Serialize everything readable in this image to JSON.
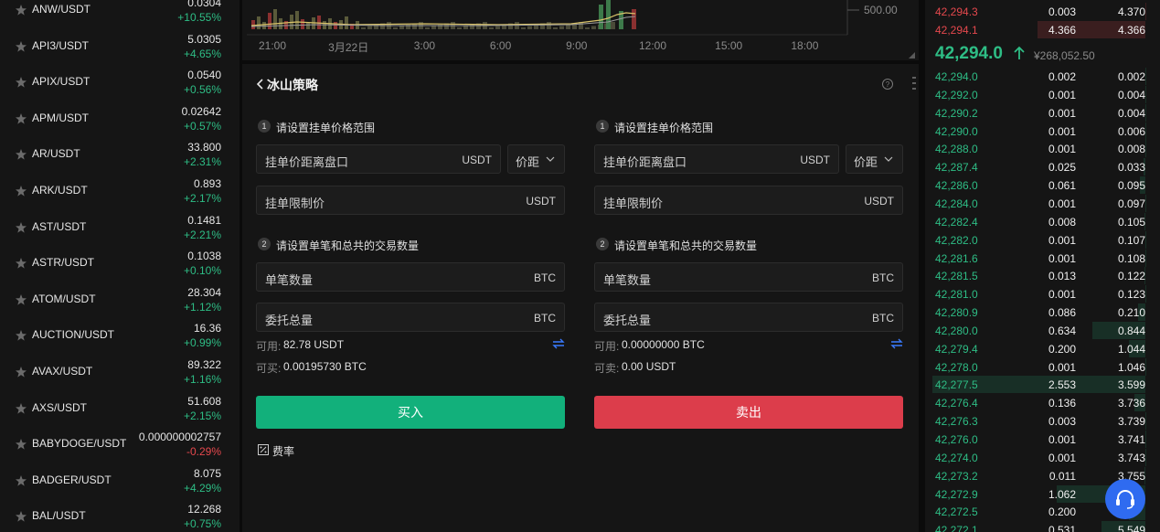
{
  "market_list": [
    {
      "symbol": "ANW/USDT",
      "price": "0.0304",
      "change": "+10.55%"
    },
    {
      "symbol": "API3/USDT",
      "price": "5.0305",
      "change": "+4.65%"
    },
    {
      "symbol": "APIX/USDT",
      "price": "0.0540",
      "change": "+0.56%"
    },
    {
      "symbol": "APM/USDT",
      "price": "0.02642",
      "change": "+0.57%"
    },
    {
      "symbol": "AR/USDT",
      "price": "33.800",
      "change": "+2.31%"
    },
    {
      "symbol": "ARK/USDT",
      "price": "0.893",
      "change": "+2.17%"
    },
    {
      "symbol": "AST/USDT",
      "price": "0.1481",
      "change": "+2.21%"
    },
    {
      "symbol": "ASTR/USDT",
      "price": "0.1038",
      "change": "+0.10%"
    },
    {
      "symbol": "ATOM/USDT",
      "price": "28.304",
      "change": "+1.12%"
    },
    {
      "symbol": "AUCTION/USDT",
      "price": "16.36",
      "change": "+0.99%"
    },
    {
      "symbol": "AVAX/USDT",
      "price": "89.322",
      "change": "+1.16%"
    },
    {
      "symbol": "AXS/USDT",
      "price": "51.608",
      "change": "+2.15%"
    },
    {
      "symbol": "BABYDOGE/USDT",
      "price": "0.000000002757",
      "change": "-0.29%"
    },
    {
      "symbol": "BADGER/USDT",
      "price": "8.075",
      "change": "+4.29%"
    },
    {
      "symbol": "BAL/USDT",
      "price": "12.268",
      "change": "+0.75%"
    }
  ],
  "chart": {
    "price_label": "500.00",
    "time_labels": [
      "21:00",
      "3月22日",
      "3:00",
      "6:00",
      "9:00",
      "12:00",
      "15:00",
      "18:00"
    ]
  },
  "strategy": {
    "title": "冰山策略",
    "buy": {
      "step1_no": "1",
      "step1": "请设置挂单价格范围",
      "distance_label": "挂单价距离盘口",
      "distance_unit": "USDT",
      "mode": "价距",
      "limit_label": "挂单限制价",
      "limit_unit": "USDT",
      "step2_no": "2",
      "step2": "请设置单笔和总共的交易数量",
      "qty_label": "单笔数量",
      "qty_unit": "BTC",
      "total_label": "委托总量",
      "total_unit": "BTC",
      "available_label": "可用:",
      "available": "82.78 USDT",
      "max_label": "可买:",
      "max": "0.00195730 BTC",
      "button": "买入"
    },
    "sell": {
      "step1_no": "1",
      "step1": "请设置挂单价格范围",
      "distance_label": "挂单价距离盘口",
      "distance_unit": "USDT",
      "mode": "价距",
      "limit_label": "挂单限制价",
      "limit_unit": "USDT",
      "step2_no": "2",
      "step2": "请设置单笔和总共的交易数量",
      "qty_label": "单笔数量",
      "qty_unit": "BTC",
      "total_label": "委托总量",
      "total_unit": "BTC",
      "available_label": "可用:",
      "available": "0.00000000 BTC",
      "max_label": "可卖:",
      "max": "0.00 USDT",
      "button": "卖出"
    },
    "fee": "费率"
  },
  "order_book": {
    "asks": [
      {
        "price": "42,294.3",
        "amount": "0.003",
        "total": "4.370"
      },
      {
        "price": "42,294.1",
        "amount": "4.366",
        "total": "4.366"
      }
    ],
    "last_price": "42,294.0",
    "last_price_cny": "¥268,052.50",
    "bids": [
      {
        "price": "42,294.0",
        "amount": "0.002",
        "total": "0.002"
      },
      {
        "price": "42,292.0",
        "amount": "0.001",
        "total": "0.004"
      },
      {
        "price": "42,290.2",
        "amount": "0.001",
        "total": "0.004"
      },
      {
        "price": "42,290.0",
        "amount": "0.001",
        "total": "0.006"
      },
      {
        "price": "42,288.0",
        "amount": "0.001",
        "total": "0.008"
      },
      {
        "price": "42,287.4",
        "amount": "0.025",
        "total": "0.033"
      },
      {
        "price": "42,286.0",
        "amount": "0.061",
        "total": "0.095"
      },
      {
        "price": "42,284.0",
        "amount": "0.001",
        "total": "0.097"
      },
      {
        "price": "42,282.4",
        "amount": "0.008",
        "total": "0.105"
      },
      {
        "price": "42,282.0",
        "amount": "0.001",
        "total": "0.107"
      },
      {
        "price": "42,281.6",
        "amount": "0.001",
        "total": "0.108"
      },
      {
        "price": "42,281.5",
        "amount": "0.013",
        "total": "0.122"
      },
      {
        "price": "42,281.0",
        "amount": "0.001",
        "total": "0.123"
      },
      {
        "price": "42,280.9",
        "amount": "0.086",
        "total": "0.210"
      },
      {
        "price": "42,280.0",
        "amount": "0.634",
        "total": "0.844"
      },
      {
        "price": "42,279.4",
        "amount": "0.200",
        "total": "1.044"
      },
      {
        "price": "42,278.0",
        "amount": "0.001",
        "total": "1.046"
      },
      {
        "price": "42,277.5",
        "amount": "2.553",
        "total": "3.599"
      },
      {
        "price": "42,276.4",
        "amount": "0.136",
        "total": "3.736"
      },
      {
        "price": "42,276.3",
        "amount": "0.003",
        "total": "3.739"
      },
      {
        "price": "42,276.0",
        "amount": "0.001",
        "total": "3.741"
      },
      {
        "price": "42,274.0",
        "amount": "0.001",
        "total": "3.743"
      },
      {
        "price": "42,273.2",
        "amount": "0.011",
        "total": "3.755"
      },
      {
        "price": "42,272.9",
        "amount": "1.062",
        "total": null
      },
      {
        "price": "42,272.5",
        "amount": "0.200",
        "total": null
      },
      {
        "price": "42,272.1",
        "amount": "0.531",
        "total": "5.549"
      }
    ]
  }
}
